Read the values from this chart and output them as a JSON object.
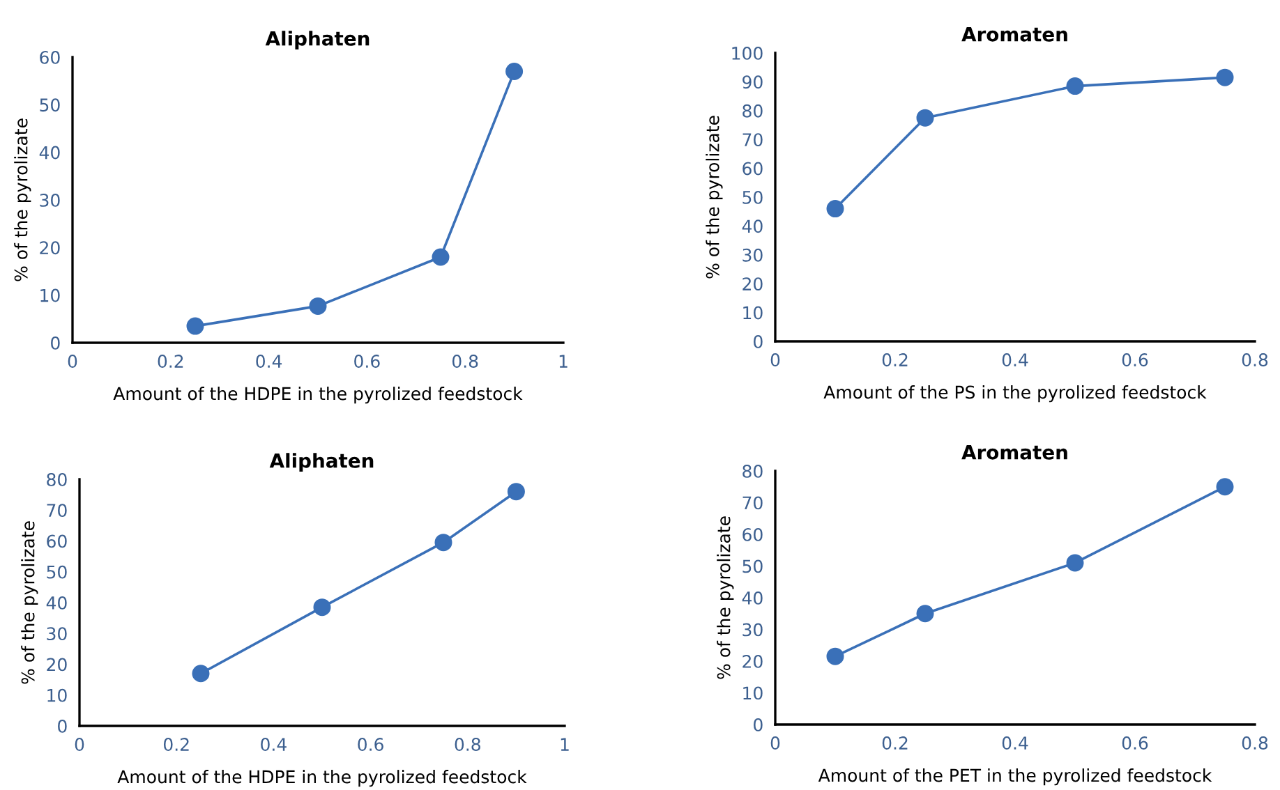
{
  "chart_data": [
    {
      "type": "line",
      "title": "Aliphaten",
      "xlabel": "Amount of the HDPE in the pyrolized feedstock",
      "ylabel": "% of the pyrolizate",
      "x": [
        0.25,
        0.5,
        0.75,
        0.9
      ],
      "series": [
        {
          "color": "#3a70b8",
          "values": [
            3.5,
            7.7,
            18,
            57
          ]
        }
      ],
      "xlim": [
        0,
        1
      ],
      "xticks": [
        0,
        0.2,
        0.4,
        0.6,
        0.8,
        1
      ],
      "ylim": [
        0,
        60
      ],
      "yticks": [
        0,
        10,
        20,
        30,
        40,
        50,
        60
      ],
      "grid": false,
      "marker": "circle",
      "line_style": "solid"
    },
    {
      "type": "line",
      "title": "Aromaten",
      "xlabel": "Amount of the PS in the pyrolized feedstock",
      "ylabel": "% of the pyrolizate",
      "x": [
        0.1,
        0.25,
        0.5,
        0.75
      ],
      "series": [
        {
          "color": "#3a70b8",
          "values": [
            46,
            77.5,
            88.5,
            91.5
          ]
        }
      ],
      "xlim": [
        0,
        0.8
      ],
      "xticks": [
        0,
        0.2,
        0.4,
        0.6,
        0.8
      ],
      "ylim": [
        0,
        100
      ],
      "yticks": [
        0,
        10,
        20,
        30,
        40,
        50,
        60,
        70,
        80,
        90,
        100
      ],
      "grid": false,
      "marker": "circle",
      "line_style": "solid"
    },
    {
      "type": "line",
      "title": "Aliphaten",
      "xlabel": "Amount of the HDPE in the pyrolized feedstock",
      "ylabel": "% of the pyrolizate",
      "x": [
        0.25,
        0.5,
        0.75,
        0.9
      ],
      "series": [
        {
          "color": "#3a70b8",
          "values": [
            17,
            38.5,
            59.5,
            76
          ]
        }
      ],
      "xlim": [
        0,
        1
      ],
      "xticks": [
        0,
        0.2,
        0.4,
        0.6,
        0.8,
        1
      ],
      "ylim": [
        0,
        80
      ],
      "yticks": [
        0,
        10,
        20,
        30,
        40,
        50,
        60,
        70,
        80
      ],
      "grid": false,
      "marker": "circle",
      "line_style": "solid"
    },
    {
      "type": "line",
      "title": "Aromaten",
      "xlabel": "Amount of the PET in the pyrolized feedstock",
      "ylabel": "% of the pyrolizate",
      "x": [
        0.1,
        0.25,
        0.5,
        0.75
      ],
      "series": [
        {
          "color": "#3a70b8",
          "values": [
            21.5,
            35,
            51,
            75
          ]
        }
      ],
      "xlim": [
        0,
        0.8
      ],
      "xticks": [
        0,
        0.2,
        0.4,
        0.6,
        0.8
      ],
      "ylim": [
        0,
        80
      ],
      "yticks": [
        0,
        10,
        20,
        30,
        40,
        50,
        60,
        70,
        80
      ],
      "grid": false,
      "marker": "circle",
      "line_style": "solid"
    }
  ]
}
